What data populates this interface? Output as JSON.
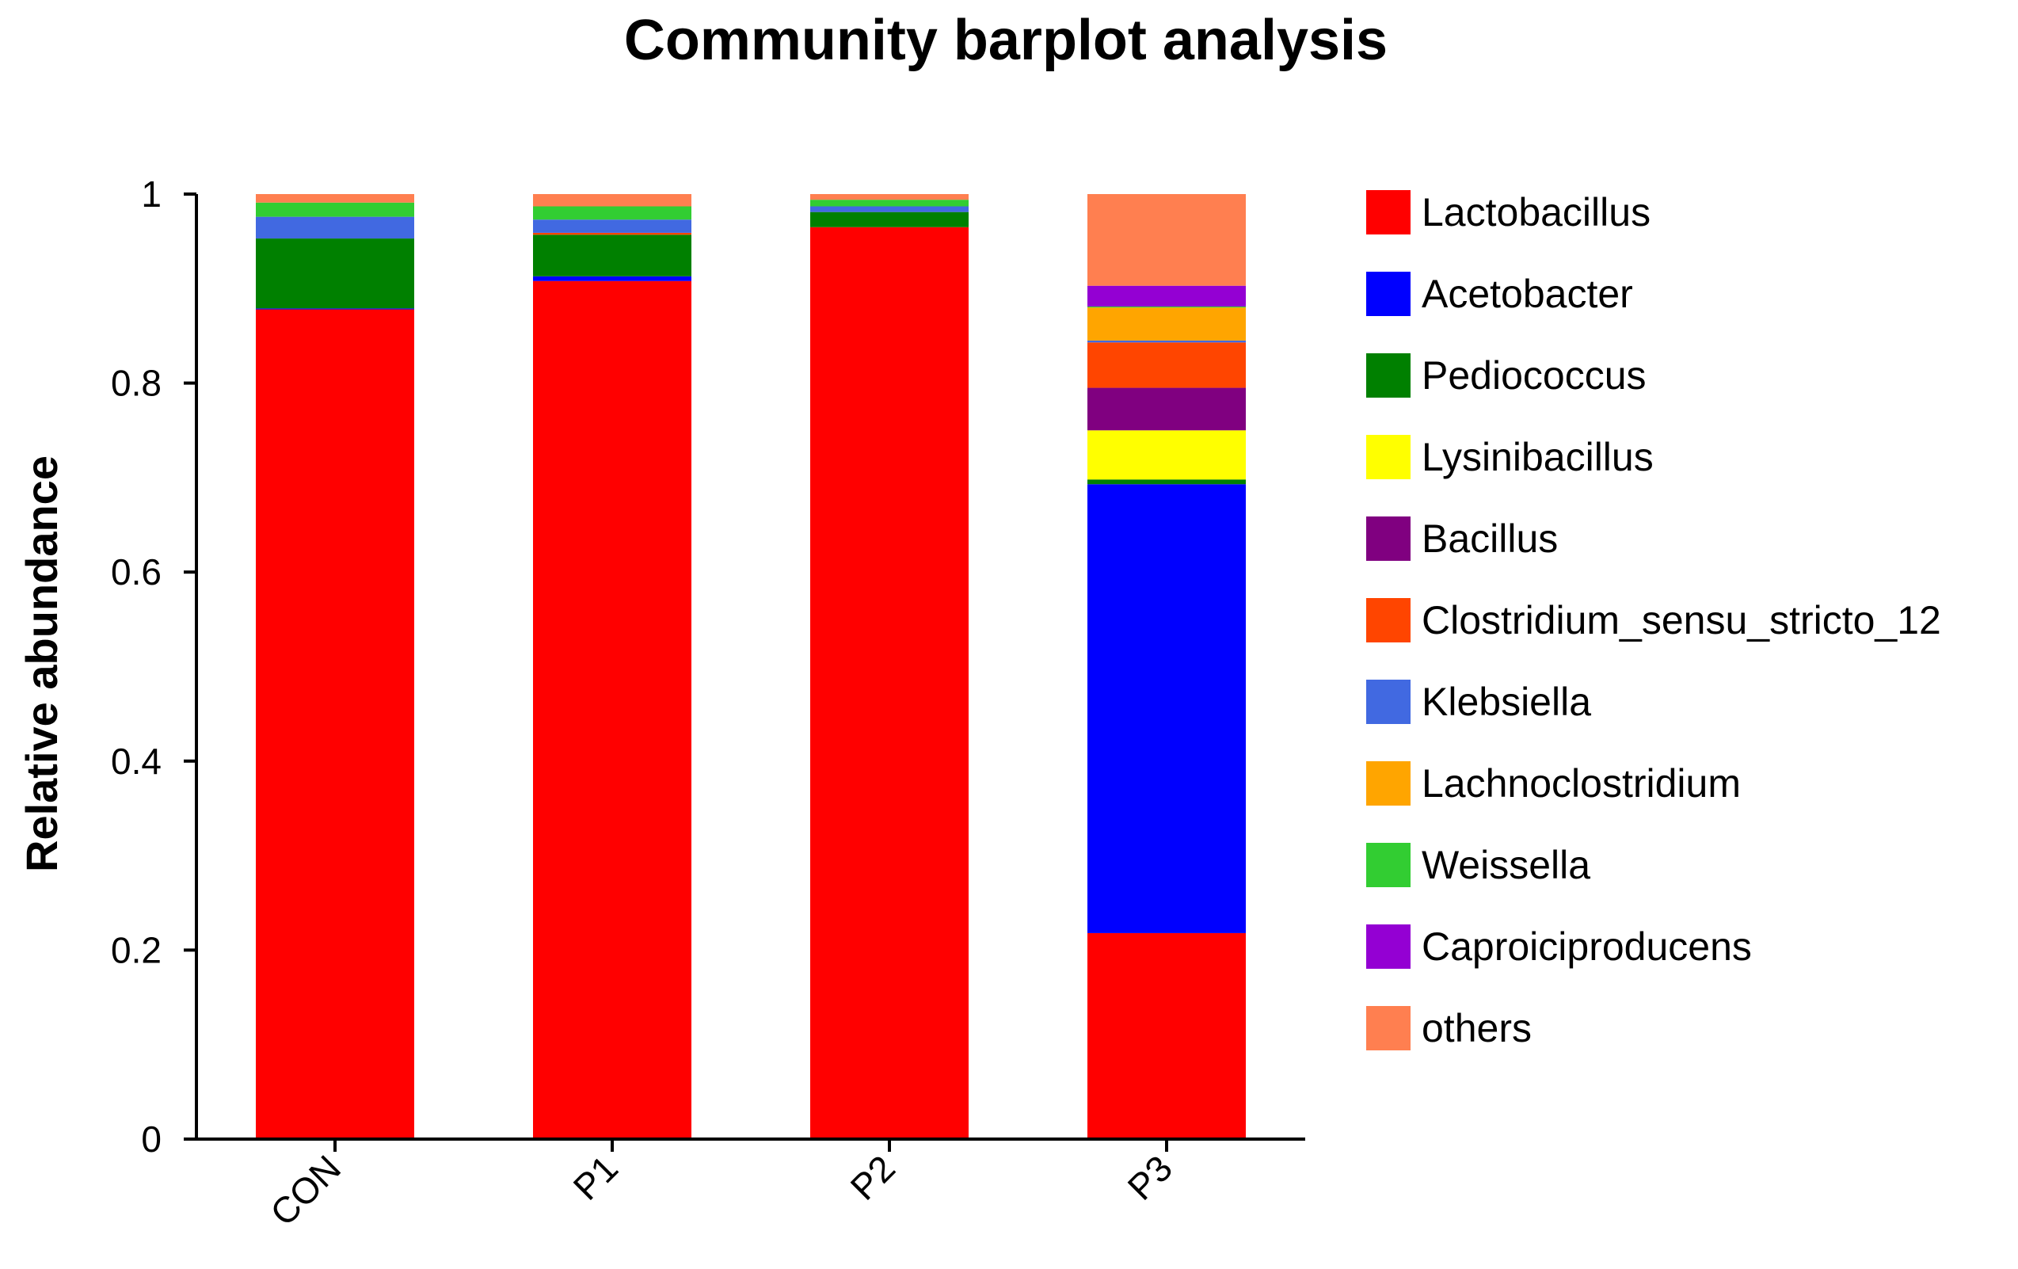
{
  "chart_data": {
    "type": "bar",
    "stacked": true,
    "title": "Community barplot analysis",
    "xlabel": "",
    "ylabel": "Relative abundance",
    "ylim": [
      0,
      1
    ],
    "yticks": [
      0,
      0.2,
      0.4,
      0.6,
      0.8,
      1
    ],
    "ytick_labels": [
      "0",
      "0.2",
      "0.4",
      "0.6",
      "0.8",
      "1"
    ],
    "categories": [
      "CON",
      "P1",
      "P2",
      "P3"
    ],
    "legend_position": "right",
    "grid": false,
    "series": [
      {
        "name": "Lactobacillus",
        "color": "#FF0000",
        "values": [
          0.878,
          0.908,
          0.965,
          0.218
        ]
      },
      {
        "name": "Acetobacter",
        "color": "#0000FF",
        "values": [
          0.001,
          0.005,
          0.0,
          0.475
        ]
      },
      {
        "name": "Pediococcus",
        "color": "#008000",
        "values": [
          0.074,
          0.044,
          0.016,
          0.005
        ]
      },
      {
        "name": "Lysinibacillus",
        "color": "#FFFF00",
        "values": [
          0.0,
          0.0,
          0.0,
          0.052
        ]
      },
      {
        "name": "Bacillus",
        "color": "#800080",
        "values": [
          0.0,
          0.0,
          0.0,
          0.045
        ]
      },
      {
        "name": "Clostridium_sensu_stricto_12",
        "color": "#FF4500",
        "values": [
          0.0,
          0.002,
          0.0,
          0.048
        ]
      },
      {
        "name": "Klebsiella",
        "color": "#4169E1",
        "values": [
          0.023,
          0.014,
          0.006,
          0.002
        ]
      },
      {
        "name": "Lachnoclostridium",
        "color": "#FFA500",
        "values": [
          0.0,
          0.0,
          0.0,
          0.035
        ]
      },
      {
        "name": "Weissella",
        "color": "#32CD32",
        "values": [
          0.015,
          0.014,
          0.007,
          0.001
        ]
      },
      {
        "name": "Caproiciproducens",
        "color": "#9400D3",
        "values": [
          0.0,
          0.0,
          0.0,
          0.022
        ]
      },
      {
        "name": "others",
        "color": "#FF7F50",
        "values": [
          0.009,
          0.013,
          0.006,
          0.097
        ]
      }
    ]
  }
}
